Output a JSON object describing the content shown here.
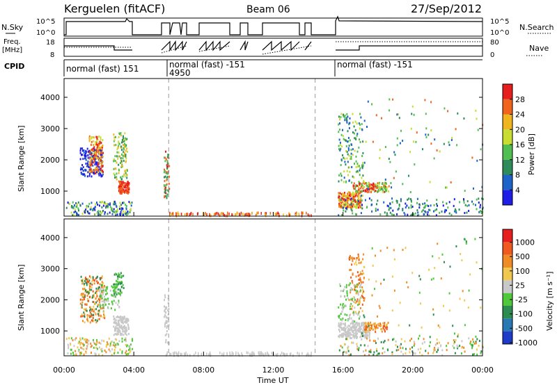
{
  "header": {
    "station": "Kerguelen (fitACF)",
    "beam": "Beam 06",
    "date": "27/Sep/2012"
  },
  "top_panels": {
    "nsky_label": "N.Sky",
    "nsky_ticks": [
      "10^5",
      "10^0"
    ],
    "nsearch_ticks": [
      "10^5",
      "10^0"
    ],
    "nsearch_label": "N.Search",
    "freq_label_line1": "Freq.",
    "freq_label_line2": "[MHz]",
    "freq_ticks": [
      "18",
      "8"
    ],
    "nave_ticks": [
      "80",
      "0"
    ],
    "nave_label": "Nave",
    "cpid_label": "CPID",
    "cpid_segments": [
      {
        "label": "normal (fast) 151",
        "sub": ""
      },
      {
        "label": "normal (fast) -151",
        "sub": "4950"
      },
      {
        "label": "normal (fast) -151",
        "sub": ""
      }
    ]
  },
  "chart_data": [
    {
      "type": "heatmap",
      "panel": "power",
      "ylabel": "Slant Range [km]",
      "xlabel": "Time UT",
      "xticks": [
        "00:00",
        "04:00",
        "08:00",
        "12:00",
        "16:00",
        "20:00",
        "00:00"
      ],
      "x_hours": [
        0,
        4,
        8,
        12,
        16,
        20,
        24
      ],
      "ylim": [
        200,
        4600
      ],
      "yticks": [
        "1000",
        "2000",
        "3000",
        "4000"
      ],
      "y_values": [
        1000,
        2000,
        3000,
        4000
      ],
      "colorbar_label": "Power [dB]",
      "colorbar_ticks": [
        "4",
        "8",
        "12",
        "16",
        "20",
        "24",
        "28"
      ],
      "colorbar_values": [
        4,
        8,
        12,
        16,
        20,
        24,
        28
      ],
      "colorbar_range": [
        0,
        32
      ],
      "colors": [
        "#1e1ee6",
        "#1e64c8",
        "#2d8c5a",
        "#50be50",
        "#c8dc32",
        "#f0b41e",
        "#f0641e",
        "#e61e1e"
      ],
      "dashed_lines_hours": [
        6.0,
        14.4
      ]
    },
    {
      "type": "heatmap",
      "panel": "velocity",
      "ylabel": "Slant Range [km]",
      "xlabel": "Time UT",
      "ylim": [
        200,
        4600
      ],
      "yticks": [
        "1000",
        "2000",
        "3000",
        "4000"
      ],
      "y_values": [
        1000,
        2000,
        3000,
        4000
      ],
      "colorbar_label": "Velocity [m s⁻¹]",
      "colorbar_ticks": [
        "1000",
        "500",
        "100",
        "25",
        "-25",
        "-100",
        "-500",
        "-1000"
      ],
      "colors": [
        "#1e3cc8",
        "#2878b4",
        "#2d8c50",
        "#50c83c",
        "#c8c8c8",
        "#f0c850",
        "#f08c28",
        "#f05a1e",
        "#e61e1e"
      ],
      "dashed_lines_hours": [
        6.0,
        14.4
      ]
    }
  ]
}
